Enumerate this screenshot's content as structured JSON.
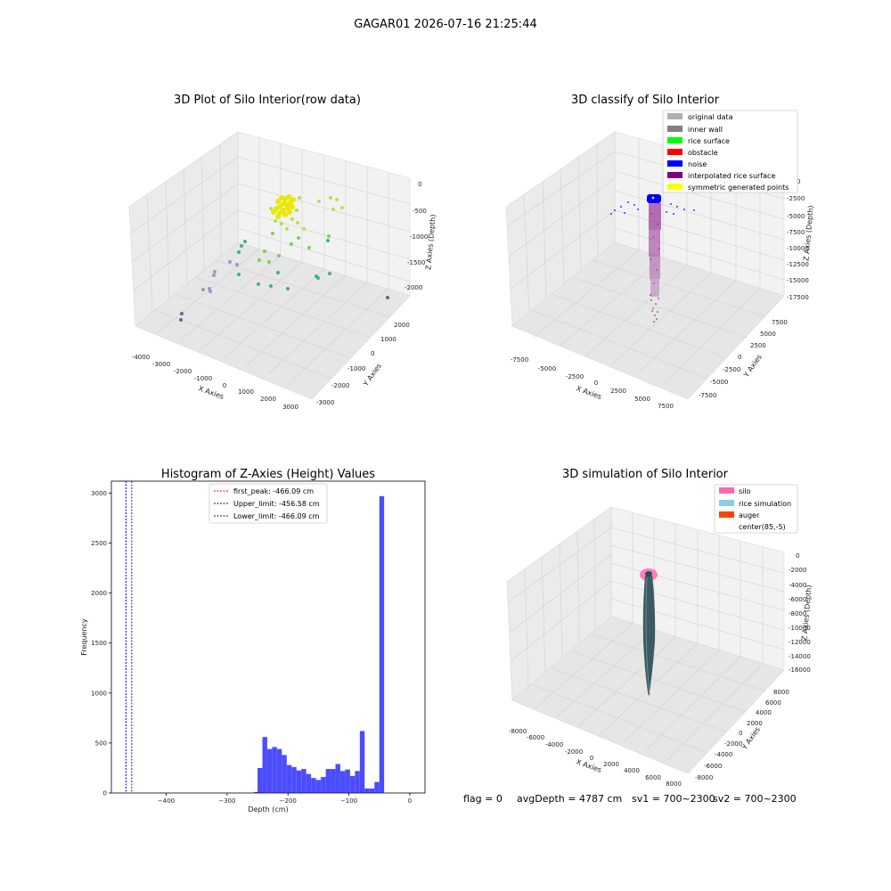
{
  "suptitle": "GAGAR01 2026-07-16 21:25:44",
  "footer": {
    "flag": "flag = 0",
    "avg": "avgDepth = 4787 cm",
    "sv1": "sv1 = 700~2300",
    "sv2": "sv2 = 700~2300"
  },
  "chart_data": [
    {
      "type": "scatter",
      "title": "3D Plot of Silo Interior(row data)",
      "xlabel": "X Axies",
      "ylabel": "Y Axies",
      "zlabel": "Z Axies (Depth)",
      "x_ticks": [
        "-4000",
        "-3000",
        "-2000",
        "-1000",
        "0",
        "1000",
        "2000",
        "3000"
      ],
      "y_ticks": [
        "2000",
        "1000",
        "0",
        "-1000",
        "-2000",
        "-3000"
      ],
      "z_ticks": [
        "0",
        "-500",
        "-1000",
        "-1500",
        "-2000"
      ]
    },
    {
      "type": "scatter",
      "title": "3D classify of Silo Interior",
      "xlabel": "X Axies",
      "ylabel": "Y Axies",
      "zlabel": "Z Axies (Depth)",
      "x_ticks": [
        "-7500",
        "-5000",
        "-2500",
        "0",
        "2500",
        "5000",
        "7500"
      ],
      "y_ticks": [
        "7500",
        "5000",
        "2500",
        "0",
        "-2500",
        "-5000",
        "-7500"
      ],
      "z_ticks": [
        "0",
        "-2500",
        "-5000",
        "-7500",
        "-10000",
        "-12500",
        "-15000",
        "-17500"
      ],
      "legend": [
        {
          "label": "original data",
          "color": "#b0b0b0"
        },
        {
          "label": "inner wall",
          "color": "#808080"
        },
        {
          "label": "rice surface",
          "color": "#00ff00"
        },
        {
          "label": "obstacle",
          "color": "#ff0000"
        },
        {
          "label": "noise",
          "color": "#0000ff"
        },
        {
          "label": "interpolated rice surface",
          "color": "#800080"
        },
        {
          "label": "symmetric generated points",
          "color": "#ffff00"
        }
      ]
    },
    {
      "type": "bar",
      "title": "Histogram of Z-Axies (Height) Values",
      "xlabel": "Depth (cm)",
      "ylabel": "Frequency",
      "xlim": [
        -490,
        25
      ],
      "ylim": [
        0,
        3120
      ],
      "x_ticks": [
        -400,
        -300,
        -200,
        -100,
        0
      ],
      "y_ticks": [
        0,
        500,
        1000,
        1500,
        2000,
        2500,
        3000
      ],
      "bin_width": 7.9,
      "bins": [
        {
          "x": -256,
          "y": 10
        },
        {
          "x": -250,
          "y": 250
        },
        {
          "x": -242,
          "y": 560
        },
        {
          "x": -234,
          "y": 440
        },
        {
          "x": -226,
          "y": 460
        },
        {
          "x": -218,
          "y": 440
        },
        {
          "x": -210,
          "y": 380
        },
        {
          "x": -202,
          "y": 280
        },
        {
          "x": -194,
          "y": 260
        },
        {
          "x": -186,
          "y": 225
        },
        {
          "x": -178,
          "y": 240
        },
        {
          "x": -170,
          "y": 190
        },
        {
          "x": -162,
          "y": 150
        },
        {
          "x": -154,
          "y": 130
        },
        {
          "x": -146,
          "y": 160
        },
        {
          "x": -138,
          "y": 240
        },
        {
          "x": -130,
          "y": 240
        },
        {
          "x": -122,
          "y": 290
        },
        {
          "x": -114,
          "y": 220
        },
        {
          "x": -106,
          "y": 235
        },
        {
          "x": -98,
          "y": 170
        },
        {
          "x": -90,
          "y": 220
        },
        {
          "x": -82,
          "y": 620
        },
        {
          "x": -74,
          "y": 45
        },
        {
          "x": -66,
          "y": 45
        },
        {
          "x": -58,
          "y": 110
        },
        {
          "x": -50,
          "y": 2970
        }
      ],
      "bar_color": "#0000ff",
      "vlines": [
        {
          "label": "first_peak: -466.09 cm",
          "x": -466.09,
          "color": "#ff0000"
        },
        {
          "label": "Upper_limit: -456.58 cm",
          "x": -456.58,
          "color": "#0000aa"
        },
        {
          "label": "Lower_limit: -466.09 cm",
          "x": -466.09,
          "color": "#0000ff"
        }
      ]
    },
    {
      "type": "surface",
      "title": "3D simulation of Silo Interior",
      "xlabel": "X Axies",
      "ylabel": "Y Axies",
      "zlabel": "Z Axies (Depth)",
      "x_ticks": [
        "-8000",
        "-6000",
        "-4000",
        "-2000",
        "0",
        "2000",
        "4000",
        "6000",
        "8000"
      ],
      "y_ticks": [
        "8000",
        "6000",
        "4000",
        "2000",
        "0",
        "-2000",
        "-4000",
        "-6000",
        "-8000"
      ],
      "z_ticks": [
        "0",
        "-2000",
        "-4000",
        "-6000",
        "-8000",
        "-10000",
        "-12000",
        "-14000",
        "-16000"
      ],
      "legend": [
        {
          "label": "silo",
          "color": "#ff69b4"
        },
        {
          "label": "rice simulation",
          "color": "#87ceeb"
        },
        {
          "label": "auger",
          "color": "#ff4500"
        },
        {
          "label": "center(85,-5)",
          "color": ""
        }
      ]
    }
  ]
}
